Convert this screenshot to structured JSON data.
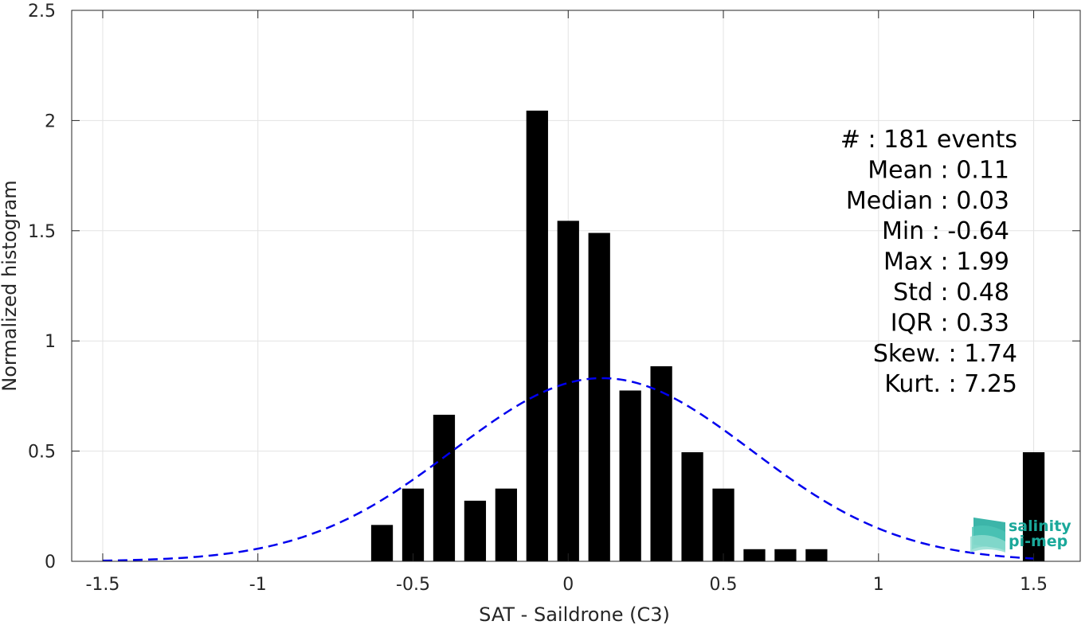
{
  "chart_data": {
    "type": "bar",
    "xlabel": "SAT - Saildrone (C3)",
    "ylabel": "Normalized histogram",
    "xlim": [
      -1.6,
      1.65
    ],
    "ylim": [
      0,
      2.5
    ],
    "grid": true,
    "x_ticks": [
      -1.5,
      -1,
      -0.5,
      0,
      0.5,
      1,
      1.5
    ],
    "x_tick_labels": [
      "-1.5",
      "-1",
      "-0.5",
      "0",
      "0.5",
      "1",
      "1.5"
    ],
    "y_ticks": [
      0,
      0.5,
      1,
      1.5,
      2,
      2.5
    ],
    "y_tick_labels": [
      "0",
      "0.5",
      "1",
      "1.5",
      "2",
      "2.5"
    ],
    "bar_width": 0.07,
    "bars": {
      "x": [
        -0.6,
        -0.5,
        -0.4,
        -0.3,
        -0.2,
        -0.1,
        0.0,
        0.1,
        0.2,
        0.3,
        0.4,
        0.5,
        0.6,
        0.7,
        0.8,
        1.5
      ],
      "values": [
        0.165,
        0.33,
        0.665,
        0.275,
        0.33,
        2.045,
        1.545,
        1.49,
        0.775,
        0.885,
        0.495,
        0.33,
        0.055,
        0.055,
        0.055,
        0.495
      ],
      "color": "#000000"
    },
    "normal_fit": {
      "mean": 0.11,
      "std": 0.48,
      "x_range": [
        -1.5,
        1.5
      ],
      "color": "#0000ee",
      "style": "dashed"
    },
    "stats": [
      {
        "label": "#  : 181 events"
      },
      {
        "label": "Mean : 0.11"
      },
      {
        "label": "Median : 0.03"
      },
      {
        "label": "Min : -0.64"
      },
      {
        "label": "Max : 1.99"
      },
      {
        "label": "Std : 0.48"
      },
      {
        "label": "IQR : 0.33"
      },
      {
        "label": "Skew. : 1.74"
      },
      {
        "label": "Kurt. : 7.25"
      }
    ]
  },
  "logo": {
    "line1": "salinity",
    "line2": "pi-mep",
    "color": "#1aa89a"
  }
}
